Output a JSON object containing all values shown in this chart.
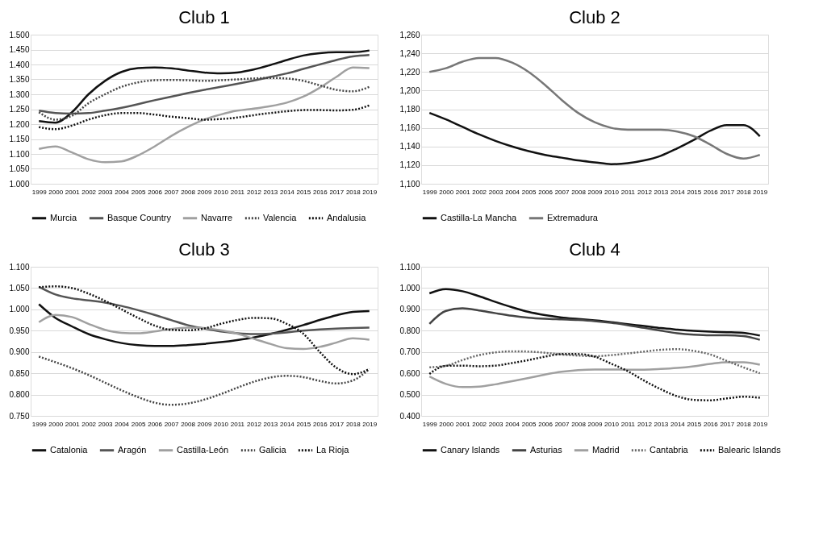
{
  "chart_data": [
    {
      "type": "line",
      "title": "Club 1",
      "categories": [
        "1999",
        "2000",
        "2001",
        "2002",
        "2003",
        "2004",
        "2005",
        "2006",
        "2007",
        "2008",
        "2009",
        "2010",
        "2011",
        "2012",
        "2013",
        "2014",
        "2015",
        "2016",
        "2017",
        "2018",
        "2019"
      ],
      "ylim": [
        1.0,
        1.5
      ],
      "yticks": [
        {
          "value": 1.0,
          "label": "1.000"
        },
        {
          "value": 1.05,
          "label": "1.050"
        },
        {
          "value": 1.1,
          "label": "1.100"
        },
        {
          "value": 1.15,
          "label": "1.150"
        },
        {
          "value": 1.2,
          "label": "1.200"
        },
        {
          "value": 1.25,
          "label": "1.250"
        },
        {
          "value": 1.3,
          "label": "1.300"
        },
        {
          "value": 1.35,
          "label": "1.350"
        },
        {
          "value": 1.4,
          "label": "1.400"
        },
        {
          "value": 1.45,
          "label": "1.450"
        },
        {
          "value": 1.5,
          "label": "1.500"
        }
      ],
      "grid": "y",
      "legend": "bottom",
      "marker": "none",
      "series": [
        {
          "name": "Murcia",
          "color": "#111111",
          "line_style": "solid",
          "values": [
            1.21,
            1.205,
            1.24,
            1.3,
            1.345,
            1.375,
            1.388,
            1.39,
            1.387,
            1.38,
            1.373,
            1.37,
            1.373,
            1.383,
            1.398,
            1.415,
            1.43,
            1.438,
            1.441,
            1.441,
            1.447
          ]
        },
        {
          "name": "Basque Country",
          "color": "#555555",
          "line_style": "solid",
          "values": [
            1.245,
            1.237,
            1.235,
            1.237,
            1.245,
            1.255,
            1.267,
            1.28,
            1.292,
            1.304,
            1.315,
            1.325,
            1.335,
            1.346,
            1.358,
            1.37,
            1.385,
            1.4,
            1.415,
            1.427,
            1.432
          ]
        },
        {
          "name": "Navarre",
          "color": "#a0a0a0",
          "line_style": "solid",
          "values": [
            1.117,
            1.125,
            1.105,
            1.082,
            1.072,
            1.075,
            1.095,
            1.125,
            1.16,
            1.19,
            1.215,
            1.232,
            1.245,
            1.252,
            1.26,
            1.272,
            1.292,
            1.322,
            1.358,
            1.39,
            1.388
          ]
        },
        {
          "name": "Valencia",
          "color": "#444444",
          "line_style": "dotted",
          "values": [
            1.24,
            1.215,
            1.228,
            1.27,
            1.3,
            1.325,
            1.34,
            1.347,
            1.348,
            1.347,
            1.345,
            1.347,
            1.35,
            1.353,
            1.355,
            1.353,
            1.345,
            1.33,
            1.315,
            1.31,
            1.325
          ]
        },
        {
          "name": "Andalusia",
          "color": "#111111",
          "line_style": "dotted",
          "values": [
            1.19,
            1.183,
            1.195,
            1.215,
            1.23,
            1.237,
            1.237,
            1.232,
            1.225,
            1.22,
            1.215,
            1.217,
            1.222,
            1.23,
            1.237,
            1.243,
            1.247,
            1.247,
            1.246,
            1.248,
            1.263
          ]
        }
      ]
    },
    {
      "type": "line",
      "title": "Club 2",
      "categories": [
        "1999",
        "2000",
        "2001",
        "2002",
        "2003",
        "2004",
        "2005",
        "2006",
        "2007",
        "2008",
        "2009",
        "2010",
        "2011",
        "2012",
        "2013",
        "2014",
        "2015",
        "2016",
        "2017",
        "2018",
        "2019"
      ],
      "ylim": [
        1100,
        1260
      ],
      "yticks": [
        {
          "value": 1100,
          "label": "1,100"
        },
        {
          "value": 1120,
          "label": "1,120"
        },
        {
          "value": 1140,
          "label": "1,140"
        },
        {
          "value": 1160,
          "label": "1,160"
        },
        {
          "value": 1180,
          "label": "1,180"
        },
        {
          "value": 1200,
          "label": "1,200"
        },
        {
          "value": 1220,
          "label": "1,220"
        },
        {
          "value": 1240,
          "label": "1,240"
        },
        {
          "value": 1260,
          "label": "1,260"
        }
      ],
      "grid": "y",
      "legend": "bottom",
      "marker": "none",
      "series": [
        {
          "name": "Castilla-La Mancha",
          "color": "#111111",
          "line_style": "solid",
          "values": [
            1176,
            1169,
            1161,
            1153,
            1146,
            1140,
            1135,
            1131,
            1128,
            1125,
            1123,
            1121,
            1122,
            1125,
            1130,
            1138,
            1147,
            1157,
            1163,
            1163,
            1151
          ]
        },
        {
          "name": "Extremadura",
          "color": "#777777",
          "line_style": "solid",
          "values": [
            1220,
            1224,
            1231,
            1235,
            1235,
            1230,
            1220,
            1206,
            1190,
            1176,
            1166,
            1160,
            1158,
            1158,
            1158,
            1156,
            1151,
            1142,
            1132,
            1127,
            1131
          ]
        }
      ]
    },
    {
      "type": "line",
      "title": "Club 3",
      "categories": [
        "1999",
        "2000",
        "2001",
        "2002",
        "2003",
        "2004",
        "2005",
        "2006",
        "2007",
        "2008",
        "2009",
        "2010",
        "2011",
        "2012",
        "2013",
        "2014",
        "2015",
        "2016",
        "2017",
        "2018",
        "2019"
      ],
      "ylim": [
        0.75,
        1.1
      ],
      "yticks": [
        {
          "value": 0.75,
          "label": "0.750"
        },
        {
          "value": 0.8,
          "label": "0.800"
        },
        {
          "value": 0.85,
          "label": "0.850"
        },
        {
          "value": 0.9,
          "label": "0.900"
        },
        {
          "value": 0.95,
          "label": "0.950"
        },
        {
          "value": 1.0,
          "label": "1.000"
        },
        {
          "value": 1.05,
          "label": "1.050"
        },
        {
          "value": 1.1,
          "label": "1.100"
        }
      ],
      "grid": "y",
      "legend": "bottom",
      "marker": "none",
      "series": [
        {
          "name": "Catalonia",
          "color": "#111111",
          "line_style": "solid",
          "values": [
            1.012,
            0.98,
            0.96,
            0.942,
            0.93,
            0.921,
            0.916,
            0.914,
            0.914,
            0.916,
            0.919,
            0.923,
            0.928,
            0.934,
            0.942,
            0.952,
            0.963,
            0.975,
            0.986,
            0.994,
            0.996
          ]
        },
        {
          "name": "Aragón",
          "color": "#555555",
          "line_style": "solid",
          "values": [
            1.053,
            1.035,
            1.026,
            1.021,
            1.016,
            1.008,
            0.998,
            0.987,
            0.975,
            0.963,
            0.955,
            0.948,
            0.944,
            0.942,
            0.943,
            0.946,
            0.95,
            0.953,
            0.955,
            0.956,
            0.957
          ]
        },
        {
          "name": "Castilla-León",
          "color": "#a0a0a0",
          "line_style": "solid",
          "values": [
            0.97,
            0.987,
            0.982,
            0.966,
            0.952,
            0.945,
            0.944,
            0.948,
            0.954,
            0.957,
            0.956,
            0.951,
            0.943,
            0.931,
            0.919,
            0.909,
            0.907,
            0.912,
            0.922,
            0.932,
            0.929
          ]
        },
        {
          "name": "Galicia",
          "color": "#444444",
          "line_style": "dotted",
          "values": [
            0.889,
            0.876,
            0.862,
            0.846,
            0.828,
            0.81,
            0.794,
            0.781,
            0.776,
            0.779,
            0.788,
            0.801,
            0.816,
            0.83,
            0.84,
            0.844,
            0.841,
            0.832,
            0.826,
            0.833,
            0.86
          ]
        },
        {
          "name": "La Rioja",
          "color": "#111111",
          "line_style": "dotted",
          "values": [
            1.052,
            1.054,
            1.05,
            1.037,
            1.02,
            1.0,
            0.98,
            0.962,
            0.952,
            0.951,
            0.955,
            0.966,
            0.975,
            0.98,
            0.979,
            0.966,
            0.943,
            0.9,
            0.863,
            0.848,
            0.86
          ]
        }
      ]
    },
    {
      "type": "line",
      "title": "Club 4",
      "categories": [
        "1999",
        "2000",
        "2001",
        "2002",
        "2003",
        "2004",
        "2005",
        "2006",
        "2007",
        "2008",
        "2009",
        "2010",
        "2011",
        "2012",
        "2013",
        "2014",
        "2015",
        "2016",
        "2017",
        "2018",
        "2019"
      ],
      "ylim": [
        0.4,
        1.1
      ],
      "yticks": [
        {
          "value": 0.4,
          "label": "0.400"
        },
        {
          "value": 0.5,
          "label": "0.500"
        },
        {
          "value": 0.6,
          "label": "0.600"
        },
        {
          "value": 0.7,
          "label": "0.700"
        },
        {
          "value": 0.8,
          "label": "0.800"
        },
        {
          "value": 0.9,
          "label": "0.900"
        },
        {
          "value": 1.0,
          "label": "1.000"
        },
        {
          "value": 1.1,
          "label": "1.100"
        }
      ],
      "grid": "y",
      "legend": "bottom",
      "marker": "none",
      "series": [
        {
          "name": "Canary Islands",
          "color": "#111111",
          "line_style": "solid",
          "values": [
            0.975,
            0.995,
            0.985,
            0.962,
            0.935,
            0.91,
            0.888,
            0.873,
            0.862,
            0.855,
            0.848,
            0.84,
            0.83,
            0.822,
            0.812,
            0.805,
            0.799,
            0.795,
            0.793,
            0.79,
            0.777
          ]
        },
        {
          "name": "Asturias",
          "color": "#444444",
          "line_style": "solid",
          "values": [
            0.832,
            0.893,
            0.905,
            0.895,
            0.882,
            0.87,
            0.861,
            0.856,
            0.853,
            0.85,
            0.845,
            0.837,
            0.826,
            0.813,
            0.8,
            0.788,
            0.781,
            0.778,
            0.778,
            0.775,
            0.757
          ]
        },
        {
          "name": "Madrid",
          "color": "#a0a0a0",
          "line_style": "solid",
          "values": [
            0.585,
            0.55,
            0.535,
            0.537,
            0.548,
            0.563,
            0.578,
            0.594,
            0.607,
            0.615,
            0.618,
            0.618,
            0.617,
            0.617,
            0.62,
            0.625,
            0.633,
            0.644,
            0.652,
            0.652,
            0.64
          ]
        },
        {
          "name": "Cantabria",
          "color": "#666666",
          "line_style": "dotted",
          "values": [
            0.628,
            0.635,
            0.662,
            0.685,
            0.698,
            0.703,
            0.702,
            0.696,
            0.688,
            0.683,
            0.68,
            0.685,
            0.693,
            0.702,
            0.71,
            0.713,
            0.705,
            0.688,
            0.658,
            0.628,
            0.6
          ]
        },
        {
          "name": "Balearic Islands",
          "color": "#111111",
          "line_style": "dotted",
          "values": [
            0.597,
            0.635,
            0.636,
            0.633,
            0.636,
            0.648,
            0.662,
            0.678,
            0.69,
            0.69,
            0.678,
            0.645,
            0.61,
            0.565,
            0.525,
            0.492,
            0.475,
            0.473,
            0.482,
            0.49,
            0.485
          ]
        }
      ]
    }
  ]
}
